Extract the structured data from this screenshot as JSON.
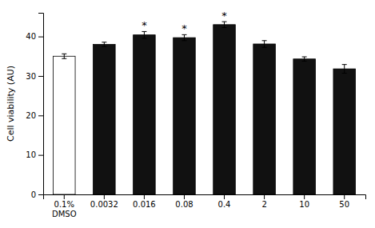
{
  "chart_data": {
    "type": "bar",
    "categories": [
      "0.1%\nDMSO",
      "0.0032",
      "0.016",
      "0.08",
      "0.4",
      "2",
      "10",
      "50"
    ],
    "values": [
      35.0,
      38.0,
      40.4,
      39.7,
      43.0,
      38.1,
      34.3,
      31.8
    ],
    "errors": [
      0.6,
      0.55,
      0.85,
      0.75,
      0.75,
      0.85,
      0.55,
      1.1
    ],
    "colors": [
      "#ffffff",
      "#111111",
      "#111111",
      "#111111",
      "#111111",
      "#111111",
      "#111111",
      "#111111"
    ],
    "annotations": [
      null,
      null,
      "*",
      "*",
      "*",
      null,
      null,
      null
    ],
    "ylabel": "Cell viability (AU)",
    "ylim": [
      0,
      46
    ],
    "yticks": [
      0,
      10,
      20,
      30,
      40
    ],
    "grid": false
  }
}
